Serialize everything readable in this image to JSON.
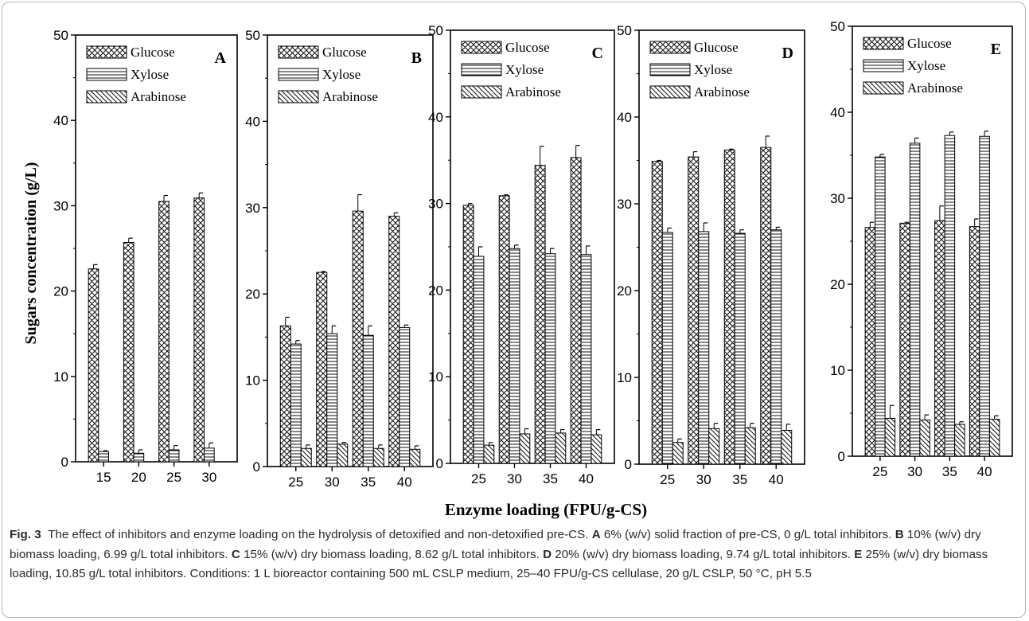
{
  "figure": {
    "ylabel": "Sugars concentration (g/L)",
    "xlabel": "Enzyme loading (FPU/g-CS)"
  },
  "legend_labels": [
    "Glucose",
    "Xylose",
    "Arabinose"
  ],
  "chart_data": [
    {
      "type": "bar",
      "panel": "A",
      "categories": [
        "15",
        "20",
        "25",
        "30"
      ],
      "ylim": [
        0,
        50
      ],
      "yticks": [
        0,
        10,
        20,
        30,
        40,
        50
      ],
      "legend_position": "top-left",
      "series": [
        {
          "name": "Glucose",
          "pattern": "crosshatch",
          "values": [
            22.6,
            25.7,
            30.5,
            30.9
          ],
          "errors": [
            0.5,
            0.5,
            0.7,
            0.6
          ]
        },
        {
          "name": "Xylose",
          "pattern": "horizontal",
          "values": [
            1.2,
            1.0,
            1.4,
            1.6
          ],
          "errors": [
            0.1,
            0.4,
            0.5,
            0.6
          ]
        },
        {
          "name": "Arabinose",
          "pattern": "diagonal",
          "values": [
            null,
            null,
            null,
            null
          ],
          "errors": [
            null,
            null,
            null,
            null
          ]
        }
      ]
    },
    {
      "type": "bar",
      "panel": "B",
      "categories": [
        "25",
        "30",
        "35",
        "40"
      ],
      "ylim": [
        0,
        50
      ],
      "yticks": [
        0,
        10,
        20,
        30,
        40,
        50
      ],
      "legend_position": "top-left",
      "series": [
        {
          "name": "Glucose",
          "pattern": "crosshatch",
          "values": [
            16.3,
            22.5,
            29.6,
            29.0
          ],
          "errors": [
            1.0,
            0.1,
            1.9,
            0.4
          ]
        },
        {
          "name": "Xylose",
          "pattern": "horizontal",
          "values": [
            14.2,
            15.4,
            15.2,
            16.1
          ],
          "errors": [
            0.4,
            0.9,
            1.1,
            0.3
          ]
        },
        {
          "name": "Arabinose",
          "pattern": "diagonal",
          "values": [
            2.1,
            2.6,
            2.1,
            2.0
          ],
          "errors": [
            0.4,
            0.2,
            0.4,
            0.4
          ]
        }
      ]
    },
    {
      "type": "bar",
      "panel": "C",
      "categories": [
        "25",
        "30",
        "35",
        "40"
      ],
      "ylim": [
        0,
        50
      ],
      "yticks": [
        0,
        10,
        20,
        30,
        40,
        50
      ],
      "legend_position": "top-left",
      "series": [
        {
          "name": "Glucose",
          "pattern": "crosshatch",
          "values": [
            29.8,
            30.9,
            34.4,
            35.3
          ],
          "errors": [
            0.2,
            0.1,
            2.2,
            1.4
          ]
        },
        {
          "name": "Xylose",
          "pattern": "horizontal",
          "values": [
            23.9,
            24.8,
            24.2,
            24.1
          ],
          "errors": [
            1.1,
            0.4,
            0.6,
            1.0
          ]
        },
        {
          "name": "Arabinose",
          "pattern": "diagonal",
          "values": [
            2.1,
            3.4,
            3.5,
            3.3
          ],
          "errors": [
            0.3,
            0.6,
            0.4,
            0.6
          ]
        }
      ]
    },
    {
      "type": "bar",
      "panel": "D",
      "categories": [
        "25",
        "30",
        "35",
        "40"
      ],
      "ylim": [
        0,
        50
      ],
      "yticks": [
        0,
        10,
        20,
        30,
        40,
        50
      ],
      "legend_position": "top-left",
      "series": [
        {
          "name": "Glucose",
          "pattern": "crosshatch",
          "values": [
            34.9,
            35.4,
            36.2,
            36.5
          ],
          "errors": [
            0.1,
            0.6,
            0.1,
            1.3
          ]
        },
        {
          "name": "Xylose",
          "pattern": "horizontal",
          "values": [
            26.7,
            26.8,
            26.6,
            27.0
          ],
          "errors": [
            0.5,
            1.0,
            0.4,
            0.3
          ]
        },
        {
          "name": "Arabinose",
          "pattern": "diagonal",
          "values": [
            2.5,
            4.1,
            4.2,
            3.9
          ],
          "errors": [
            0.4,
            0.6,
            0.5,
            0.7
          ]
        }
      ]
    },
    {
      "type": "bar",
      "panel": "E",
      "categories": [
        "25",
        "30",
        "35",
        "40"
      ],
      "ylim": [
        0,
        50
      ],
      "yticks": [
        0,
        10,
        20,
        30,
        40,
        50
      ],
      "legend_position": "top-left",
      "series": [
        {
          "name": "Glucose",
          "pattern": "crosshatch",
          "values": [
            26.6,
            27.1,
            27.4,
            26.7
          ],
          "errors": [
            0.6,
            0.1,
            1.7,
            0.9
          ]
        },
        {
          "name": "Xylose",
          "pattern": "horizontal",
          "values": [
            34.8,
            36.4,
            37.3,
            37.2
          ],
          "errors": [
            0.3,
            0.6,
            0.4,
            0.6
          ]
        },
        {
          "name": "Arabinose",
          "pattern": "diagonal",
          "values": [
            4.4,
            4.2,
            3.7,
            4.3
          ],
          "errors": [
            1.5,
            0.6,
            0.3,
            0.4
          ]
        }
      ]
    }
  ],
  "caption": {
    "fig_label": "Fig. 3",
    "text_intro": "The effect of inhibitors and enzyme loading on the hydrolysis of detoxified and non-detoxified pre-CS.",
    "parts": [
      {
        "letter": "A",
        "text": "6% (w/v) solid fraction of pre-CS, 0 g/L total inhibitors."
      },
      {
        "letter": "B",
        "text": "10% (w/v) dry biomass loading, 6.99 g/L total inhibitors."
      },
      {
        "letter": "C",
        "text": "15% (w/v) dry biomass loading, 8.62 g/L total inhibitors."
      },
      {
        "letter": "D",
        "text": "20% (w/v) dry biomass loading, 9.74 g/L total inhibitors."
      },
      {
        "letter": "E",
        "text": "25% (w/v) dry biomass loading, 10.85 g/L total inhibitors. Conditions: 1 L bioreactor containing 500 mL CSLP medium, 25–40 FPU/g-CS cellulase, 20 g/L CSLP, 50 °C, pH 5.5"
      }
    ]
  }
}
